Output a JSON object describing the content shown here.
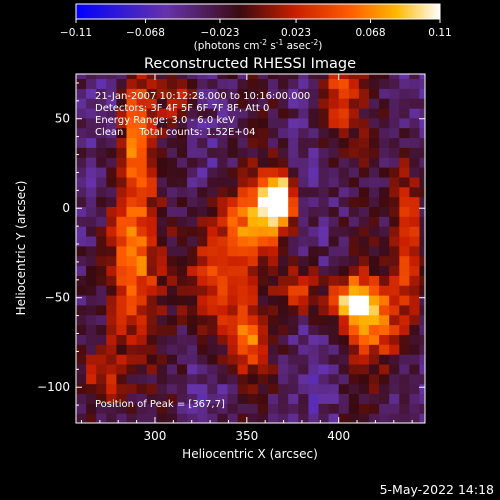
{
  "chart_data": {
    "type": "heatmap",
    "title": "Reconstructed RHESSI Image",
    "xlabel": "Heliocentric X (arcsec)",
    "ylabel": "Heliocentric Y (arcsec)",
    "xlim": [
      257,
      447
    ],
    "ylim": [
      -120,
      75
    ],
    "x_ticks": [
      300,
      350,
      400
    ],
    "y_ticks": [
      50,
      0,
      -50,
      -100
    ],
    "colorbar": {
      "label_html": "(photons cm<sup>-2</sup> s<sup>-1</sup> asec<sup>-2</sup>)",
      "label_parts": [
        "(photons cm",
        "-2",
        " s",
        "-1",
        " asec",
        "-2",
        ")"
      ],
      "min": -0.11,
      "max": 0.11,
      "ticks": [
        -0.11,
        -0.068,
        -0.023,
        0.023,
        0.068,
        0.11
      ],
      "tick_labels": [
        "−0.11",
        "−0.068",
        "−0.023",
        "0.023",
        "0.068",
        "0.11"
      ],
      "colormap": "blue-purple-red-orange-yellow-white"
    },
    "annotations": [
      "21-Jan-2007 10:12:28.000 to 10:16:00.000",
      "Detectors: 3F 4F 5F 6F 7F 8F, Att 0",
      "Energy Range: 3.0 - 6.0 keV",
      "Clean     Total counts: 1.52E+04"
    ],
    "peak_label": "Position of Peak = [367,7]",
    "peak_position": [
      367,
      7
    ],
    "sources": [
      {
        "x": 367,
        "y": 7,
        "amp": 0.11,
        "sx": 6,
        "sy": 10
      },
      {
        "x": 409,
        "y": -52,
        "amp": 0.095,
        "sx": 9,
        "sy": 9
      },
      {
        "x": 355,
        "y": -5,
        "amp": 0.055,
        "sx": 14,
        "sy": 14
      },
      {
        "x": 290,
        "y": 40,
        "amp": 0.055,
        "sx": 6,
        "sy": 25
      },
      {
        "x": 286,
        "y": -30,
        "amp": 0.06,
        "sx": 10,
        "sy": 30
      },
      {
        "x": 333,
        "y": -40,
        "amp": 0.05,
        "sx": 12,
        "sy": 22
      },
      {
        "x": 350,
        "y": -75,
        "amp": 0.045,
        "sx": 8,
        "sy": 12
      },
      {
        "x": 420,
        "y": -65,
        "amp": 0.045,
        "sx": 10,
        "sy": 15
      },
      {
        "x": 438,
        "y": -20,
        "amp": 0.045,
        "sx": 6,
        "sy": 35
      },
      {
        "x": 400,
        "y": 60,
        "amp": 0.04,
        "sx": 7,
        "sy": 18
      },
      {
        "x": 272,
        "y": -95,
        "amp": 0.035,
        "sx": 8,
        "sy": 15
      },
      {
        "x": 313,
        "y": 60,
        "amp": 0.03,
        "sx": 6,
        "sy": 10
      },
      {
        "x": 380,
        "y": -45,
        "amp": 0.04,
        "sx": 8,
        "sy": 10
      }
    ]
  },
  "footer": {
    "date": "5-May-2022 14:18"
  }
}
